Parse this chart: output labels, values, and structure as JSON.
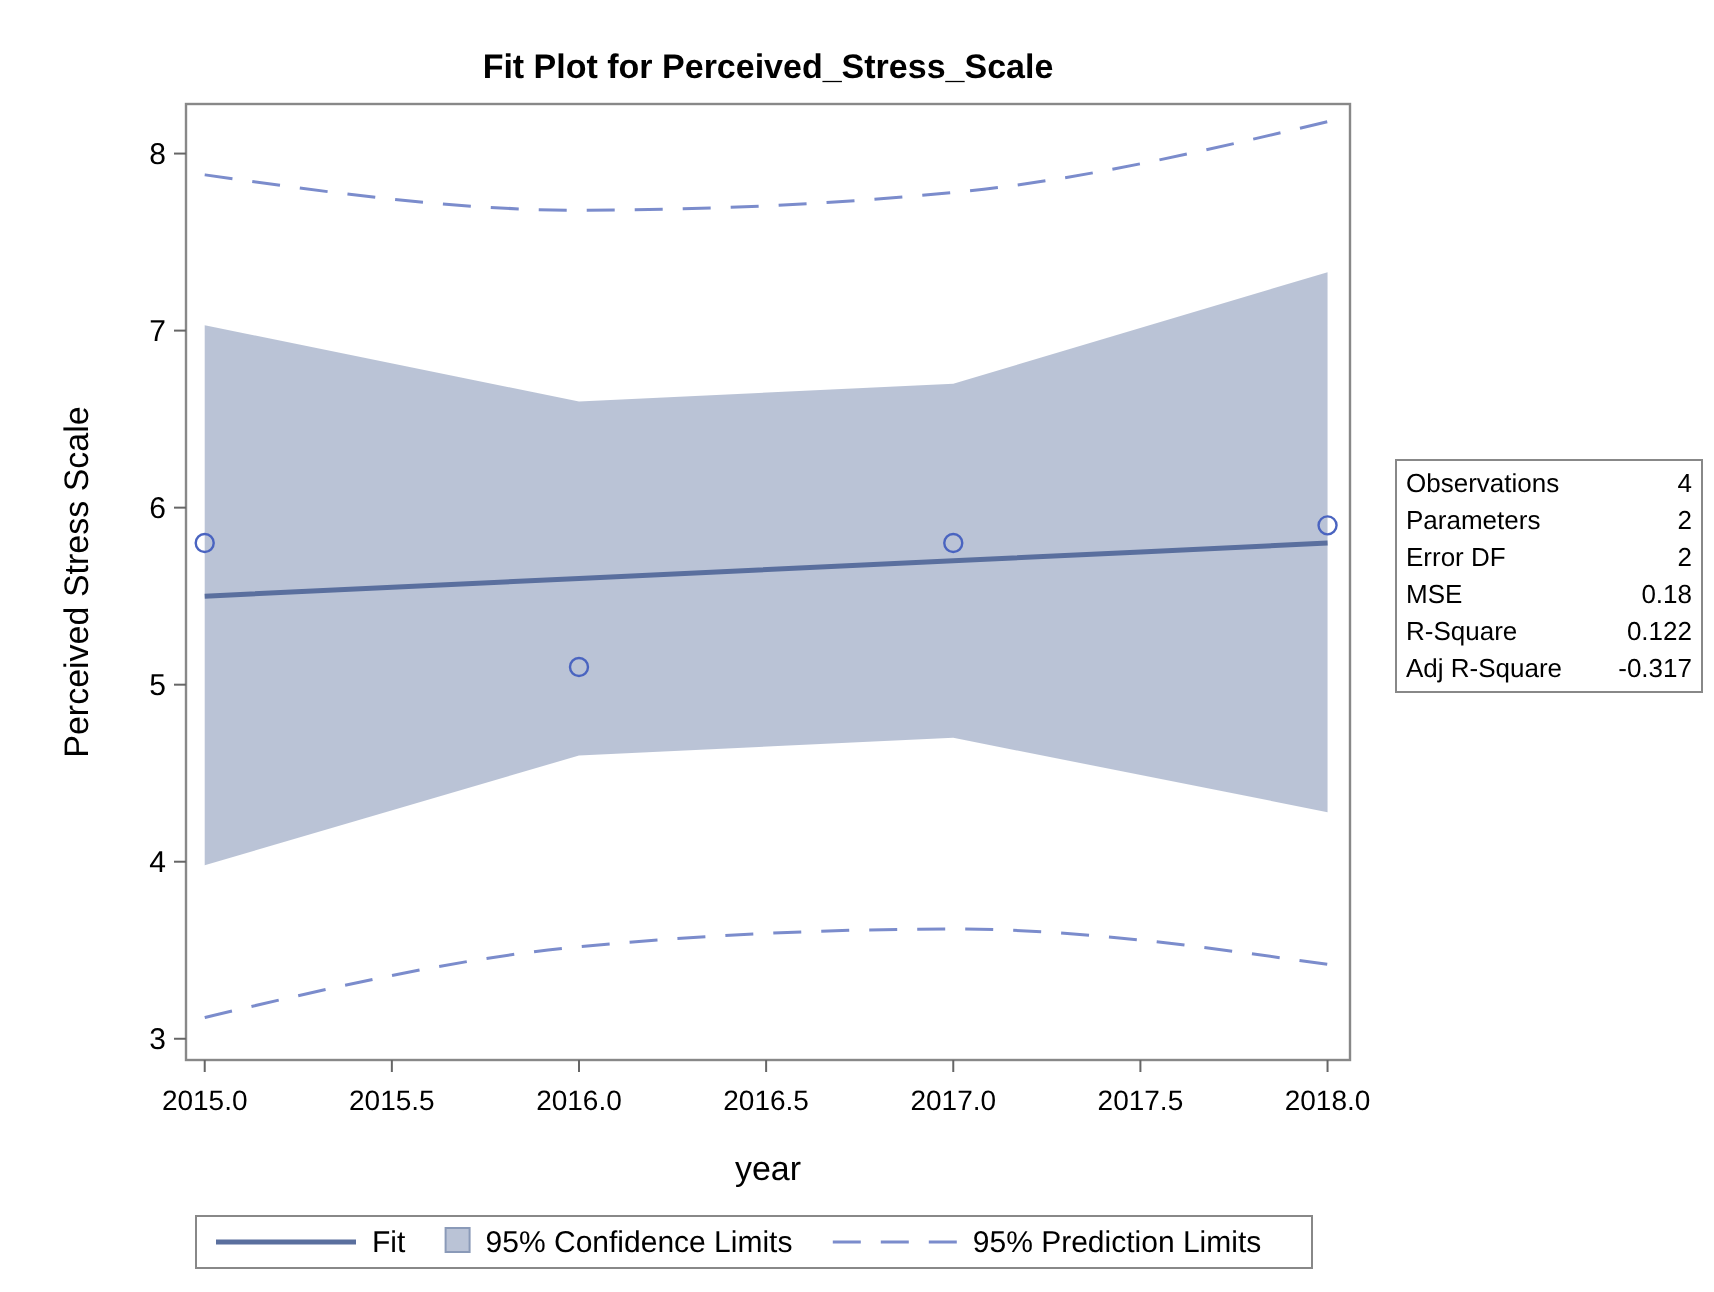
{
  "chart_data": {
    "type": "line",
    "title": "Fit Plot for Perceived_Stress_Scale",
    "xlabel": "year",
    "ylabel": "Perceived Stress Scale",
    "x": [
      2015,
      2016,
      2017,
      2018
    ],
    "xlim": [
      2014.95,
      2018.06
    ],
    "xticks": [
      {
        "value": 2015,
        "label": "2015.0"
      },
      {
        "value": 2015.5,
        "label": "2015.5"
      },
      {
        "value": 2016,
        "label": "2016.0"
      },
      {
        "value": 2016.5,
        "label": "2016.5"
      },
      {
        "value": 2017,
        "label": "2017.0"
      },
      {
        "value": 2017.5,
        "label": "2017.5"
      },
      {
        "value": 2018,
        "label": "2018.0"
      }
    ],
    "ylim": [
      2.88,
      8.28
    ],
    "yticks": [
      3,
      4,
      5,
      6,
      7,
      8
    ],
    "series": [
      {
        "name": "Fit",
        "color": "#5a6f9e",
        "values": [
          5.5,
          5.6,
          5.7,
          5.8
        ],
        "lower": [
          3.98,
          4.6,
          4.7,
          4.28
        ],
        "upper": [
          7.03,
          6.6,
          6.7,
          7.33
        ],
        "line_style": "solid"
      },
      {
        "name": "95% Prediction Limits",
        "color": "#7b8ccc",
        "values": [
          7.88,
          7.68,
          7.78,
          8.18
        ],
        "line_style": "dashed"
      },
      {
        "color": "#7b8ccc",
        "values": [
          3.12,
          3.52,
          3.62,
          3.42
        ],
        "line_style": "dashed"
      },
      {
        "type": "scatter",
        "color": "#4a64c0",
        "marker": "circle",
        "values": [
          5.8,
          5.1,
          5.8,
          5.9
        ]
      }
    ],
    "annotations": [
      "95% Confidence Limits",
      "Observations\t4",
      "Parameters\t2",
      "Error DF\t2",
      "MSE\t0.18",
      "R-Square\t0.122",
      "Adj R-Square\t-0.317"
    ],
    "legend": "bottom",
    "grid": false
  }
}
